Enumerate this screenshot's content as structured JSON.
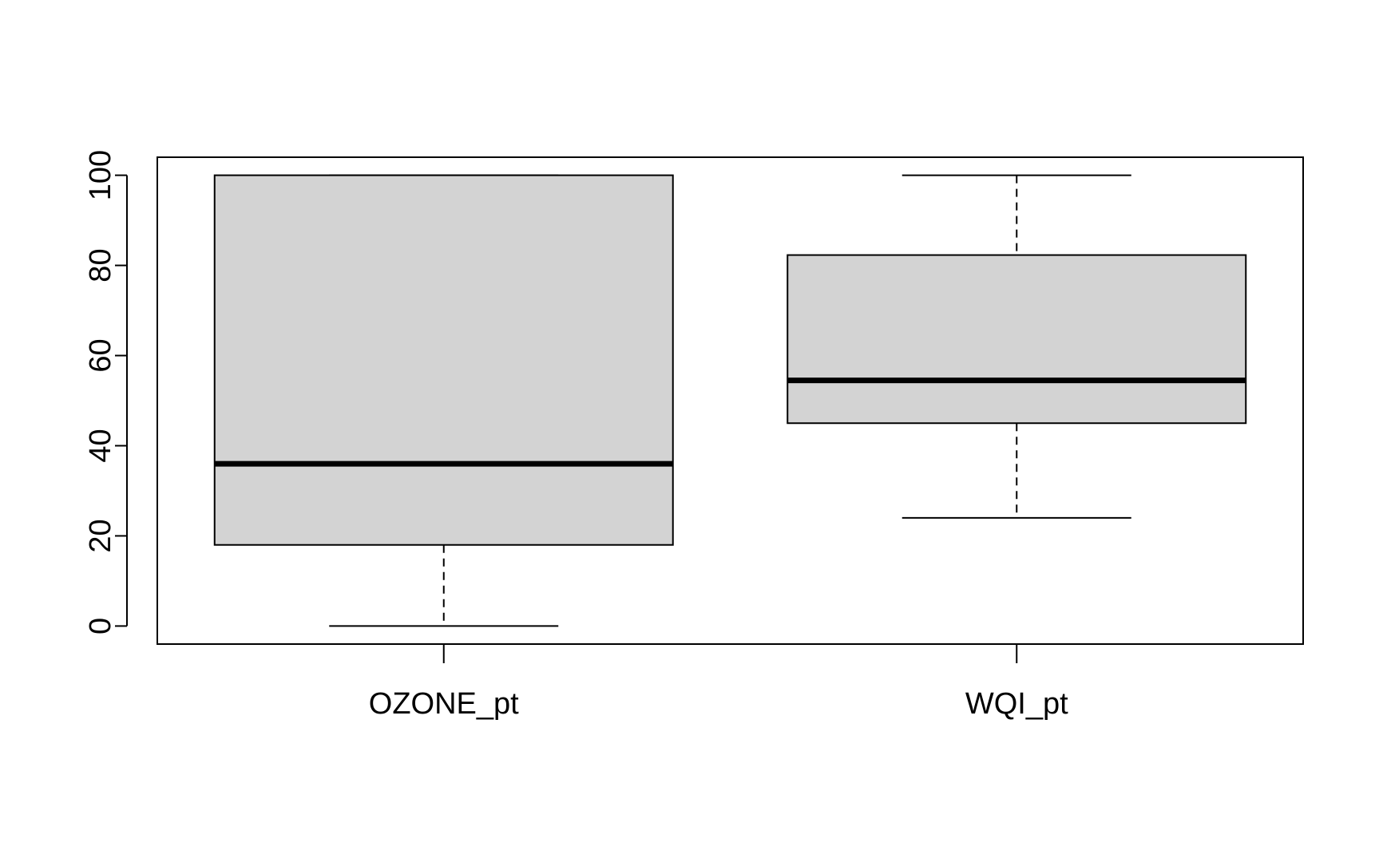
{
  "chart_data": {
    "type": "boxplot",
    "title": "",
    "xlabel": "",
    "ylabel": "",
    "ylim": [
      -4,
      104
    ],
    "yticks": [
      0,
      20,
      40,
      60,
      80,
      100
    ],
    "ytick_labels": [
      "0",
      "20",
      "40",
      "60",
      "80",
      "100"
    ],
    "grid": false,
    "legend": "none",
    "categories": [
      "OZONE_pt",
      "WQI_pt"
    ],
    "boxes": [
      {
        "name": "OZONE_pt",
        "whisker_low": 0,
        "q1": 18,
        "median": 36,
        "q3": 100,
        "whisker_high": 100
      },
      {
        "name": "WQI_pt",
        "whisker_low": 24,
        "q1": 45,
        "median": 54.5,
        "q3": 82.3,
        "whisker_high": 100
      }
    ],
    "colors": {
      "box_fill": "#d3d3d3",
      "stroke": "#000000",
      "background": "#ffffff"
    }
  }
}
